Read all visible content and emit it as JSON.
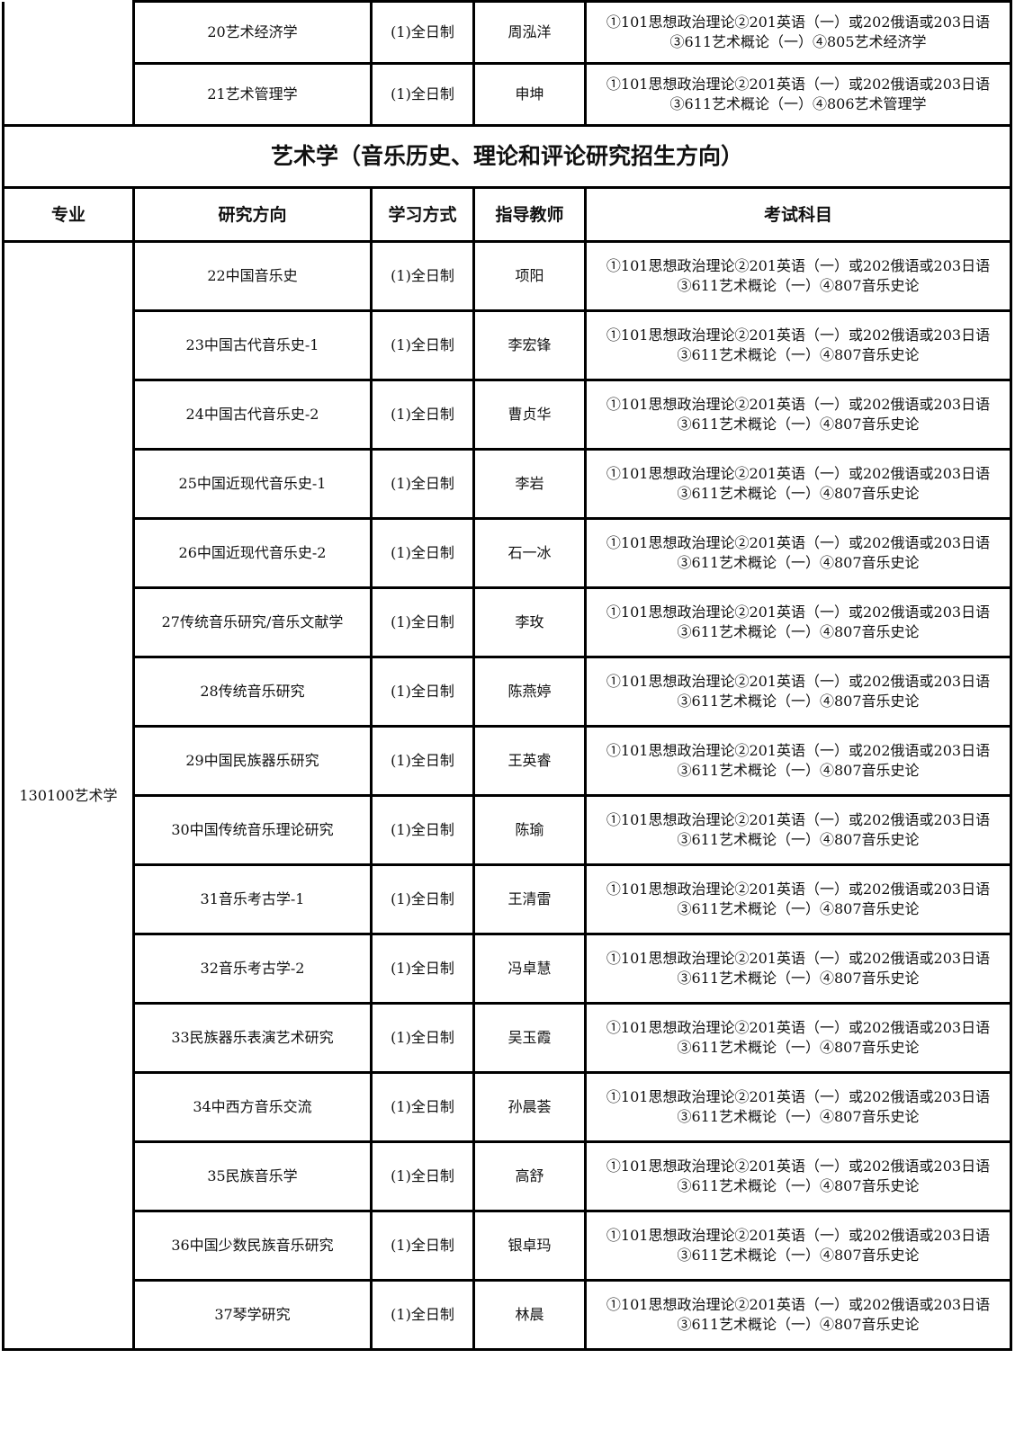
{
  "top_rows": [
    {
      "direction": "20艺术经济学",
      "mode": "(1)全日制",
      "advisor": "周泓洋",
      "exam_line1": "①101思想政治理论②201英语（一）或202俄语或203日语",
      "exam_line2": "③611艺术概论（一）④805艺术经济学"
    },
    {
      "direction": "21艺术管理学",
      "mode": "(1)全日制",
      "advisor": "申坤",
      "exam_line1": "①101思想政治理论②201英语（一）或202俄语或203日语",
      "exam_line2": "③611艺术概论（一）④806艺术管理学"
    }
  ],
  "section_title": "艺术学（音乐历史、理论和评论研究招生方向）",
  "headers": {
    "major": "专业",
    "direction": "研究方向",
    "mode": "学习方式",
    "advisor": "指导教师",
    "exam": "考试科目"
  },
  "major": "130100艺术学",
  "rows": [
    {
      "direction": "22中国音乐史",
      "mode": "(1)全日制",
      "advisor": "项阳",
      "exam_line1": "①101思想政治理论②201英语（一）或202俄语或203日语",
      "exam_line2": "③611艺术概论（一）④807音乐史论"
    },
    {
      "direction": "23中国古代音乐史-1",
      "mode": "(1)全日制",
      "advisor": "李宏锋",
      "exam_line1": "①101思想政治理论②201英语（一）或202俄语或203日语",
      "exam_line2": "③611艺术概论（一）④807音乐史论"
    },
    {
      "direction": "24中国古代音乐史-2",
      "mode": "(1)全日制",
      "advisor": "曹贞华",
      "exam_line1": "①101思想政治理论②201英语（一）或202俄语或203日语",
      "exam_line2": "③611艺术概论（一）④807音乐史论"
    },
    {
      "direction": "25中国近现代音乐史-1",
      "mode": "(1)全日制",
      "advisor": "李岩",
      "exam_line1": "①101思想政治理论②201英语（一）或202俄语或203日语",
      "exam_line2": "③611艺术概论（一）④807音乐史论"
    },
    {
      "direction": "26中国近现代音乐史-2",
      "mode": "(1)全日制",
      "advisor": "石一冰",
      "exam_line1": "①101思想政治理论②201英语（一）或202俄语或203日语",
      "exam_line2": "③611艺术概论（一）④807音乐史论"
    },
    {
      "direction": "27传统音乐研究/音乐文献学",
      "mode": "(1)全日制",
      "advisor": "李玫",
      "exam_line1": "①101思想政治理论②201英语（一）或202俄语或203日语",
      "exam_line2": "③611艺术概论（一）④807音乐史论"
    },
    {
      "direction": "28传统音乐研究",
      "mode": "(1)全日制",
      "advisor": "陈燕婷",
      "exam_line1": "①101思想政治理论②201英语（一）或202俄语或203日语",
      "exam_line2": "③611艺术概论（一）④807音乐史论"
    },
    {
      "direction": "29中国民族器乐研究",
      "mode": "(1)全日制",
      "advisor": "王英睿",
      "exam_line1": "①101思想政治理论②201英语（一）或202俄语或203日语",
      "exam_line2": "③611艺术概论（一）④807音乐史论"
    },
    {
      "direction": "30中国传统音乐理论研究",
      "mode": "(1)全日制",
      "advisor": "陈瑜",
      "exam_line1": "①101思想政治理论②201英语（一）或202俄语或203日语",
      "exam_line2": "③611艺术概论（一）④807音乐史论"
    },
    {
      "direction": "31音乐考古学-1",
      "mode": "(1)全日制",
      "advisor": "王清雷",
      "exam_line1": "①101思想政治理论②201英语（一）或202俄语或203日语",
      "exam_line2": "③611艺术概论（一）④807音乐史论"
    },
    {
      "direction": "32音乐考古学-2",
      "mode": "(1)全日制",
      "advisor": "冯卓慧",
      "exam_line1": "①101思想政治理论②201英语（一）或202俄语或203日语",
      "exam_line2": "③611艺术概论（一）④807音乐史论"
    },
    {
      "direction": "33民族器乐表演艺术研究",
      "mode": "(1)全日制",
      "advisor": "吴玉霞",
      "exam_line1": "①101思想政治理论②201英语（一）或202俄语或203日语",
      "exam_line2": "③611艺术概论（一）④807音乐史论"
    },
    {
      "direction": "34中西方音乐交流",
      "mode": "(1)全日制",
      "advisor": "孙晨荟",
      "exam_line1": "①101思想政治理论②201英语（一）或202俄语或203日语",
      "exam_line2": "③611艺术概论（一）④807音乐史论"
    },
    {
      "direction": "35民族音乐学",
      "mode": "(1)全日制",
      "advisor": "高舒",
      "exam_line1": "①101思想政治理论②201英语（一）或202俄语或203日语",
      "exam_line2": "③611艺术概论（一）④807音乐史论"
    },
    {
      "direction": "36中国少数民族音乐研究",
      "mode": "(1)全日制",
      "advisor": "银卓玛",
      "exam_line1": "①101思想政治理论②201英语（一）或202俄语或203日语",
      "exam_line2": "③611艺术概论（一）④807音乐史论"
    },
    {
      "direction": "37琴学研究",
      "mode": "(1)全日制",
      "advisor": "林晨",
      "exam_line1": "①101思想政治理论②201英语（一）或202俄语或203日语",
      "exam_line2": "③611艺术概论（一）④807音乐史论"
    }
  ]
}
